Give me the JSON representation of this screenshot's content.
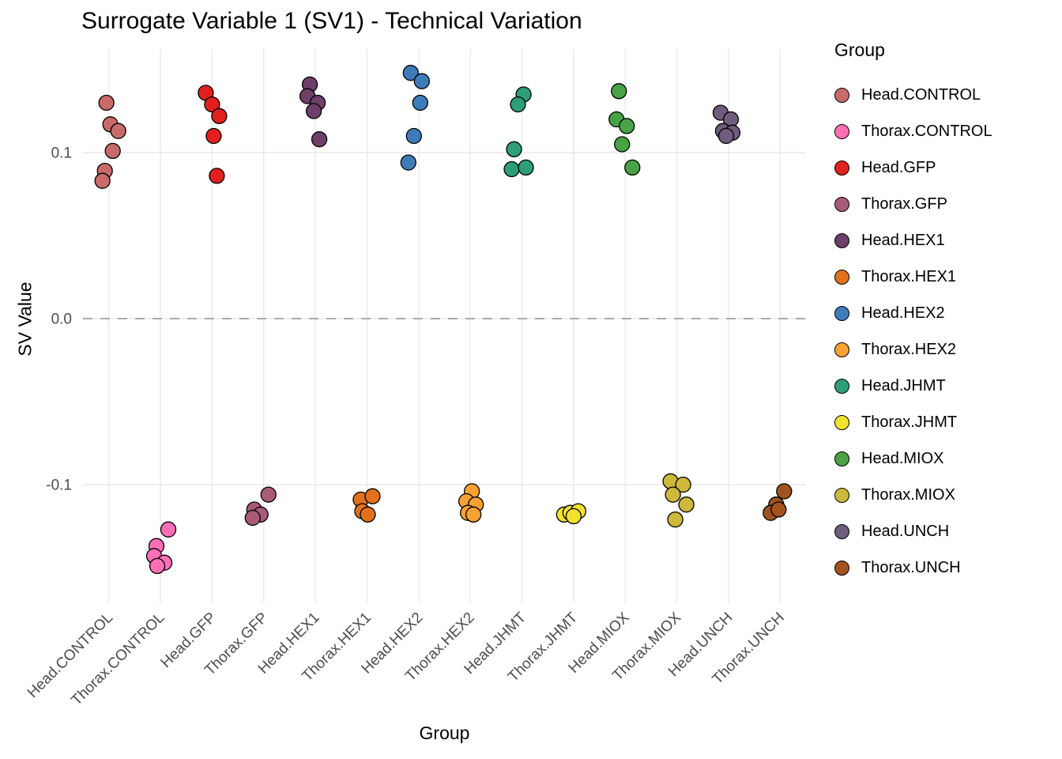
{
  "chart_data": {
    "type": "scatter",
    "title": "Surrogate Variable 1 (SV1) - Technical Variation",
    "xlabel": "Group",
    "ylabel": "SV Value",
    "legend_title": "Group",
    "y_ticks": [
      0.1,
      0.0,
      -0.1
    ],
    "y_tick_labels": [
      "0.1",
      "0.0",
      "-0.1"
    ],
    "ylim": [
      -0.165,
      0.16
    ],
    "grid": true,
    "grid_color": "#e9e9e9",
    "legend_position": "right",
    "zero_line": {
      "y": 0,
      "style": "dashed",
      "color": "#ababab"
    },
    "point_style": {
      "radius": 9.5,
      "stroke": "#000000"
    },
    "groups": [
      {
        "label": "Head.CONTROL",
        "color": "#c96a6a",
        "points": [
          [
            -3,
            0.13
          ],
          [
            2,
            0.117
          ],
          [
            12,
            0.113
          ],
          [
            5,
            0.101
          ],
          [
            -5,
            0.089
          ],
          [
            -8,
            0.083
          ]
        ]
      },
      {
        "label": "Thorax.CONTROL",
        "color": "#ff6fb5",
        "points": [
          [
            10,
            -0.127
          ],
          [
            -5,
            -0.137
          ],
          [
            -8,
            -0.143
          ],
          [
            5,
            -0.147
          ],
          [
            -4,
            -0.149
          ]
        ]
      },
      {
        "label": "Head.GFP",
        "color": "#e3201e",
        "points": [
          [
            -8,
            0.136
          ],
          [
            0,
            0.129
          ],
          [
            9,
            0.122
          ],
          [
            2,
            0.11
          ],
          [
            6,
            0.086
          ]
        ]
      },
      {
        "label": "Thorax.GFP",
        "color": "#a85b79",
        "points": [
          [
            6,
            -0.106
          ],
          [
            -12,
            -0.115
          ],
          [
            -4,
            -0.118
          ],
          [
            -14,
            -0.12
          ]
        ]
      },
      {
        "label": "Head.HEX1",
        "color": "#6e3f68",
        "points": [
          [
            -7,
            0.141
          ],
          [
            -10,
            0.134
          ],
          [
            3,
            0.13
          ],
          [
            -2,
            0.125
          ],
          [
            5,
            0.108
          ]
        ]
      },
      {
        "label": "Thorax.HEX1",
        "color": "#e2711d",
        "points": [
          [
            -8,
            -0.109
          ],
          [
            7,
            -0.107
          ],
          [
            -6,
            -0.116
          ],
          [
            1,
            -0.118
          ]
        ]
      },
      {
        "label": "Head.HEX2",
        "color": "#3e7cb9",
        "points": [
          [
            -10,
            0.148
          ],
          [
            4,
            0.143
          ],
          [
            2,
            0.13
          ],
          [
            -6,
            0.11
          ],
          [
            -13,
            0.094
          ]
        ]
      },
      {
        "label": "Thorax.HEX2",
        "color": "#f9a232",
        "points": [
          [
            2,
            -0.104
          ],
          [
            -5,
            -0.11
          ],
          [
            7,
            -0.112
          ],
          [
            -3,
            -0.117
          ],
          [
            4,
            -0.118
          ]
        ]
      },
      {
        "label": "Head.JHMT",
        "color": "#2e9e78",
        "points": [
          [
            2,
            0.135
          ],
          [
            -5,
            0.129
          ],
          [
            -10,
            0.102
          ],
          [
            -13,
            0.09
          ],
          [
            5,
            0.091
          ]
        ]
      },
      {
        "label": "Thorax.JHMT",
        "color": "#f3e32f",
        "points": [
          [
            -12,
            -0.118
          ],
          [
            -4,
            -0.117
          ],
          [
            6,
            -0.116
          ],
          [
            0,
            -0.119
          ]
        ]
      },
      {
        "label": "Head.MIOX",
        "color": "#49a346",
        "points": [
          [
            -8,
            0.137
          ],
          [
            -11,
            0.12
          ],
          [
            2,
            0.116
          ],
          [
            -4,
            0.105
          ],
          [
            9,
            0.091
          ]
        ]
      },
      {
        "label": "Thorax.MIOX",
        "color": "#cdb83c",
        "points": [
          [
            -8,
            -0.098
          ],
          [
            8,
            -0.1
          ],
          [
            12,
            -0.112
          ],
          [
            -5,
            -0.106
          ],
          [
            -2,
            -0.121
          ]
        ]
      },
      {
        "label": "Head.UNCH",
        "color": "#6f5c7e",
        "points": [
          [
            -10,
            0.124
          ],
          [
            3,
            0.12
          ],
          [
            -7,
            0.113
          ],
          [
            5,
            0.112
          ],
          [
            -3,
            0.11
          ]
        ]
      },
      {
        "label": "Thorax.UNCH",
        "color": "#a2531f",
        "points": [
          [
            5,
            -0.104
          ],
          [
            -5,
            -0.112
          ],
          [
            -12,
            -0.117
          ],
          [
            -2,
            -0.115
          ]
        ]
      }
    ]
  }
}
